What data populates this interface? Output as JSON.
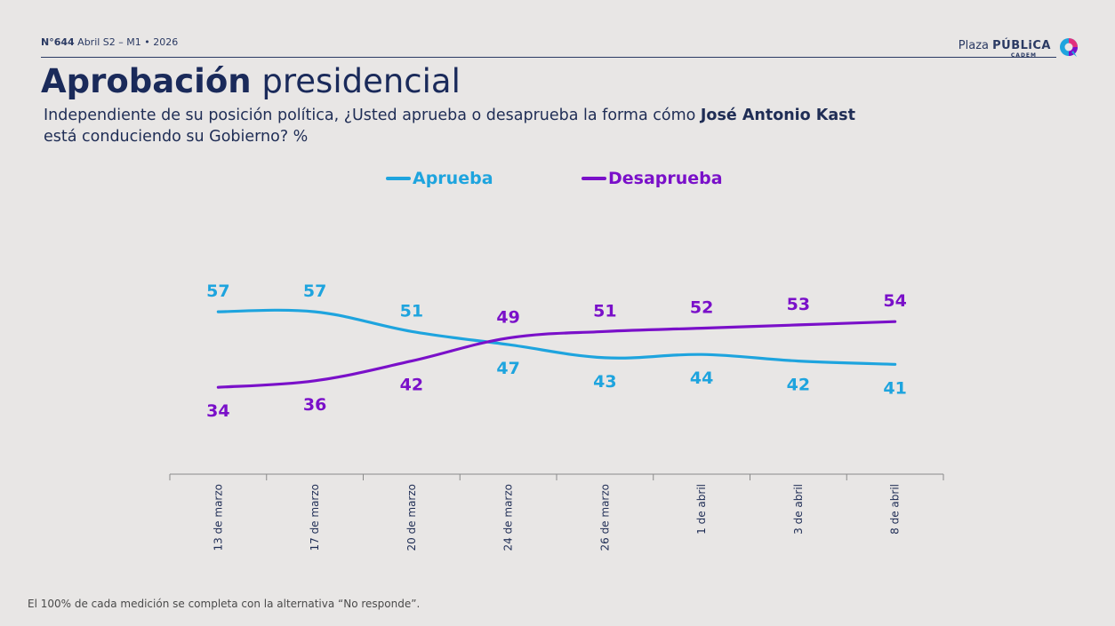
{
  "header": {
    "issue_number": "N°644",
    "issue_detail": "Abril S2 – M1 • 2026",
    "brand_plaza": "Plaza",
    "brand_publica": "PÚBLiCA",
    "brand_sub": "CADEM"
  },
  "title_bold": "Aprobación",
  "title_rest": "presidencial",
  "question_pre": "Independiente de su posición política, ¿Usted aprueba o desaprueba la forma cómo ",
  "question_bold": "José Antonio Kast",
  "question_post": "está conduciendo su Gobierno? %",
  "footnote": "El 100% de cada medición se completa con la alternativa “No responde”.",
  "chart_data": {
    "type": "line",
    "x": [
      "13 de marzo",
      "17 de marzo",
      "20 de marzo",
      "24 de marzo",
      "26 de marzo",
      "1 de abril",
      "3 de abril",
      "8 de abril"
    ],
    "series": [
      {
        "name": "Aprueba",
        "color": "#1ea4de",
        "values": [
          57,
          57,
          51,
          47,
          43,
          44,
          42,
          41
        ]
      },
      {
        "name": "Desaprueba",
        "color": "#7a10c9",
        "values": [
          34,
          36,
          42,
          49,
          51,
          52,
          53,
          54
        ]
      }
    ],
    "legend_position": "top-center",
    "grid": false
  }
}
